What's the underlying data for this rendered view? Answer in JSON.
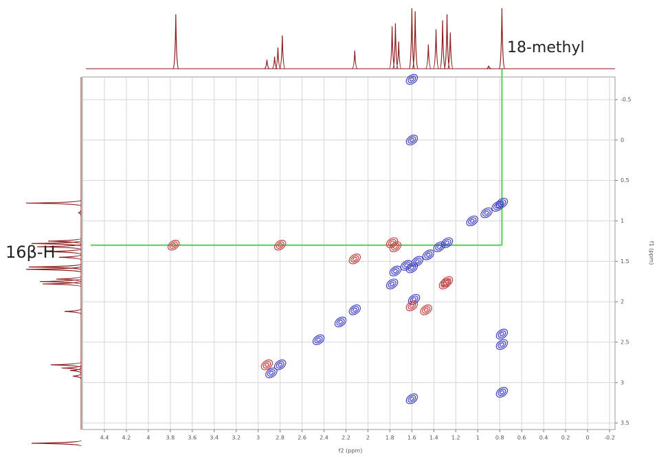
{
  "chart_data": {
    "type": "nmr-2d",
    "xlabel": "f2 (ppm)",
    "ylabel": "f1 (ppm)",
    "xlim": [
      4.6,
      -0.25
    ],
    "ylim": [
      -0.78,
      3.58
    ],
    "xticks": [
      4.4,
      4.2,
      4.0,
      3.8,
      3.6,
      3.4,
      3.2,
      3.0,
      2.8,
      2.6,
      2.4,
      2.2,
      2.0,
      1.8,
      1.6,
      1.4,
      1.2,
      1.0,
      0.8,
      0.6,
      0.4,
      0.2,
      0.0,
      -0.2
    ],
    "yticks": [
      -0.5,
      0.0,
      0.5,
      1.0,
      1.5,
      2.0,
      2.5,
      3.0,
      3.5
    ],
    "grid": true,
    "annotations": [
      "18-methyl",
      "16β-H"
    ],
    "guides": {
      "x": 0.78,
      "y": 1.3,
      "color": "#4cd44c"
    },
    "series": [
      {
        "color": "#3f3fc0",
        "x": [
          0.78,
          0.82,
          0.92,
          1.05,
          1.28,
          1.35,
          1.45,
          1.55,
          1.6,
          1.65,
          1.75,
          1.78,
          2.12,
          2.25,
          2.45,
          2.8,
          2.88,
          1.6,
          1.6,
          1.6,
          1.58,
          0.78,
          0.78,
          0.78
        ],
        "values": [
          0.78,
          0.82,
          0.9,
          1.0,
          1.27,
          1.32,
          1.42,
          1.5,
          1.58,
          1.55,
          1.62,
          1.78,
          2.1,
          2.25,
          2.47,
          2.78,
          2.88,
          -0.75,
          0.0,
          3.2,
          1.97,
          2.4,
          2.53,
          3.12
        ]
      },
      {
        "color": "#c04040",
        "x": [
          1.78,
          1.75,
          1.3,
          1.28,
          2.8,
          3.77,
          2.12,
          1.47,
          2.92,
          1.6
        ],
        "values": [
          1.27,
          1.32,
          1.78,
          1.75,
          1.3,
          1.3,
          1.47,
          2.1,
          2.78,
          2.05
        ]
      }
    ],
    "projection": {
      "color": "#8b1a1a",
      "x": [
        3.75,
        2.92,
        2.85,
        2.82,
        2.78,
        2.12,
        1.78,
        1.75,
        1.72,
        1.6,
        1.57,
        1.45,
        1.38,
        1.32,
        1.28,
        1.25,
        0.9,
        0.78
      ],
      "values": [
        0.9,
        0.15,
        0.2,
        0.35,
        0.55,
        0.3,
        0.7,
        0.75,
        0.45,
        1.0,
        0.95,
        0.4,
        0.65,
        0.8,
        0.9,
        0.6,
        0.05,
        1.0
      ]
    }
  }
}
